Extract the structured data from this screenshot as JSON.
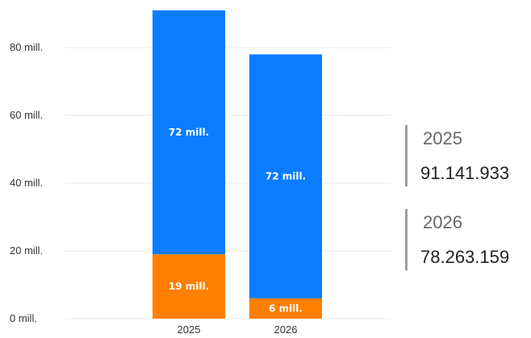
{
  "chart_data": {
    "type": "bar",
    "stacked": true,
    "categories": [
      "2025",
      "2026"
    ],
    "series": [
      {
        "values": [
          19,
          6
        ],
        "labels": [
          "19 mill.",
          "6 mill."
        ],
        "color": "#ff7f00"
      },
      {
        "values": [
          72,
          72
        ],
        "labels": [
          "72 mill.",
          "72 mill."
        ],
        "color": "#0a7cff"
      }
    ],
    "totals": [
      91.141933,
      78.263159
    ],
    "ylim": [
      0,
      91.2
    ],
    "yticks": [
      0,
      20,
      40,
      60,
      80
    ],
    "ytick_labels": [
      "0 mill.",
      "20 mill.",
      "40 mill.",
      "60 mill.",
      "80 mill."
    ],
    "grid": true
  },
  "summary": [
    {
      "year": "2025",
      "value": "91.141.933"
    },
    {
      "year": "2026",
      "value": "78.263.159"
    }
  ]
}
